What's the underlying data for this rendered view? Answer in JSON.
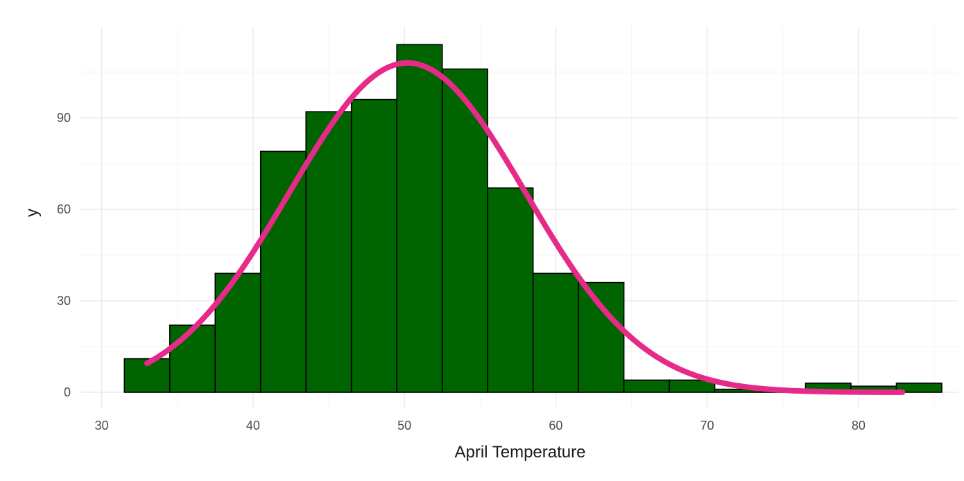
{
  "chart_data": {
    "type": "bar",
    "xlabel": "April Temperature",
    "ylabel": "y",
    "xlim": [
      28.6,
      86.6
    ],
    "ylim": [
      -5.0,
      120.0
    ],
    "x_ticks": [
      30,
      40,
      50,
      60,
      70,
      80
    ],
    "y_ticks": [
      0,
      30,
      60,
      90
    ],
    "grid": true,
    "bin_width": 3,
    "bins": [
      {
        "start": 31.5,
        "end": 34.5,
        "count": 11
      },
      {
        "start": 34.5,
        "end": 37.5,
        "count": 22
      },
      {
        "start": 37.5,
        "end": 40.5,
        "count": 39
      },
      {
        "start": 40.5,
        "end": 43.5,
        "count": 79
      },
      {
        "start": 43.5,
        "end": 46.5,
        "count": 92
      },
      {
        "start": 46.5,
        "end": 49.5,
        "count": 96
      },
      {
        "start": 49.5,
        "end": 52.5,
        "count": 114
      },
      {
        "start": 52.5,
        "end": 55.5,
        "count": 106
      },
      {
        "start": 55.5,
        "end": 58.5,
        "count": 67
      },
      {
        "start": 58.5,
        "end": 61.5,
        "count": 39
      },
      {
        "start": 61.5,
        "end": 64.5,
        "count": 36
      },
      {
        "start": 64.5,
        "end": 67.5,
        "count": 4
      },
      {
        "start": 67.5,
        "end": 70.5,
        "count": 4
      },
      {
        "start": 70.5,
        "end": 73.5,
        "count": 1
      },
      {
        "start": 73.5,
        "end": 76.5,
        "count": 1
      },
      {
        "start": 76.5,
        "end": 79.5,
        "count": 3
      },
      {
        "start": 79.5,
        "end": 82.5,
        "count": 2
      },
      {
        "start": 82.5,
        "end": 85.5,
        "count": 3
      }
    ],
    "overlay_curve": {
      "type": "normal-density",
      "mean": 50.2,
      "sd": 7.8,
      "peak": 108,
      "x_range": [
        33.0,
        82.9
      ]
    }
  },
  "colors": {
    "background": "#ffffff",
    "bar_fill": "#006400",
    "bar_stroke": "#000000",
    "curve": "#e7298a",
    "grid_major": "#ebebeb",
    "grid_minor": "#f3f3f3"
  }
}
